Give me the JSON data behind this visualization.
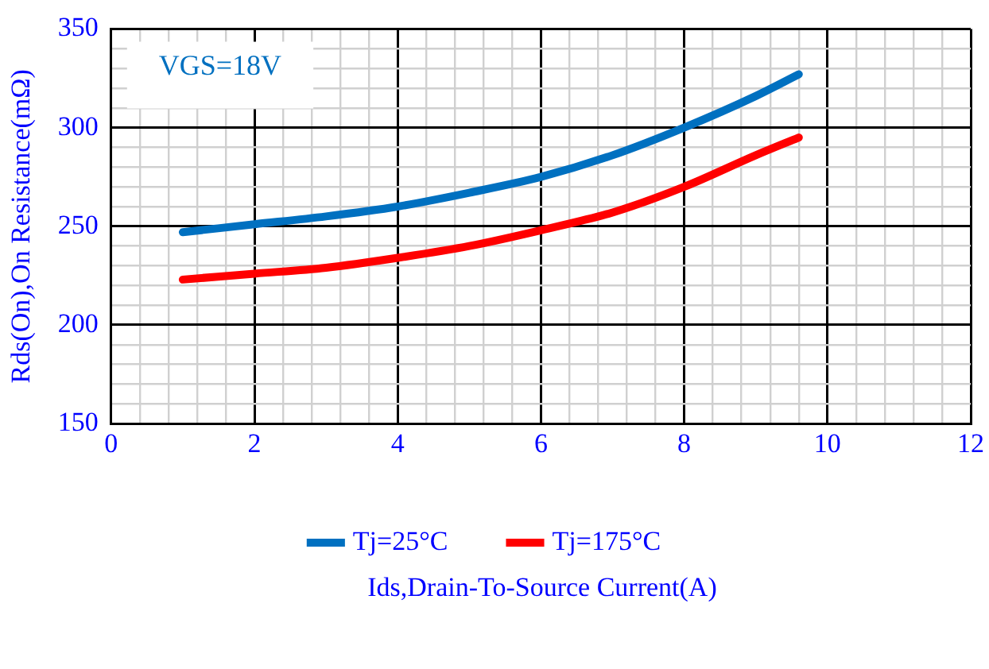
{
  "chart_data": {
    "type": "line",
    "xlabel": "Ids,Drain-To-Source Current(A)",
    "ylabel": "Rds(On),On Resistance(mΩ)",
    "annotations": [
      "VGS=18V"
    ],
    "series": [
      {
        "name": "Tj=25°C",
        "color": "#0070c0",
        "x": [
          1,
          2,
          3,
          4,
          5,
          6,
          7,
          8,
          9,
          9.6
        ],
        "values": [
          247,
          251,
          255,
          260,
          267,
          275,
          286,
          300,
          316,
          327
        ]
      },
      {
        "name": "Tj=175°C",
        "color": "#ff0000",
        "x": [
          1,
          2,
          3,
          4,
          5,
          6,
          7,
          8,
          9,
          9.6
        ],
        "values": [
          223,
          226,
          229,
          234,
          240,
          248,
          257,
          270,
          286,
          295
        ]
      }
    ],
    "xlim": [
      0,
      12
    ],
    "ylim": [
      150,
      350
    ],
    "xticks": [
      0,
      {
        "value": 0.4,
        "label": null
      },
      {
        "value": 0.8,
        "label": null
      },
      {
        "value": 1.2,
        "label": null
      },
      {
        "value": 1.6,
        "label": null
      },
      2,
      {
        "value": 2.4,
        "label": null
      },
      {
        "value": 2.8,
        "label": null
      },
      {
        "value": 3.2,
        "label": null
      },
      {
        "value": 3.6,
        "label": null
      },
      4,
      {
        "value": 4.4,
        "label": null
      },
      {
        "value": 4.8,
        "label": null
      },
      {
        "value": 5.2,
        "label": null
      },
      {
        "value": 5.6,
        "label": null
      },
      6,
      {
        "value": 6.4,
        "label": null
      },
      {
        "value": 6.8,
        "label": null
      },
      {
        "value": 7.2,
        "label": null
      },
      {
        "value": 7.6,
        "label": null
      },
      8,
      {
        "value": 8.4,
        "label": null
      },
      {
        "value": 8.8,
        "label": null
      },
      {
        "value": 9.2,
        "label": null
      },
      {
        "value": 9.6,
        "label": null
      },
      10,
      {
        "value": 10.4,
        "label": null
      },
      {
        "value": 10.8,
        "label": null
      },
      {
        "value": 11.2,
        "label": null
      },
      {
        "value": 11.6,
        "label": null
      },
      12
    ],
    "yticks": [
      150,
      {
        "value": 160,
        "label": null
      },
      {
        "value": 170,
        "label": null
      },
      {
        "value": 180,
        "label": null
      },
      {
        "value": 190,
        "label": null
      },
      200,
      {
        "value": 210,
        "label": null
      },
      {
        "value": 220,
        "label": null
      },
      {
        "value": 230,
        "label": null
      },
      {
        "value": 240,
        "label": null
      },
      250,
      {
        "value": 260,
        "label": null
      },
      {
        "value": 270,
        "label": null
      },
      {
        "value": 280,
        "label": null
      },
      {
        "value": 290,
        "label": null
      },
      300,
      {
        "value": 310,
        "label": null
      },
      {
        "value": 320,
        "label": null
      },
      {
        "value": 330,
        "label": null
      },
      {
        "value": 340,
        "label": null
      },
      350
    ],
    "grid": true,
    "legend": "bottom",
    "marker": "none",
    "line_style": "solid"
  }
}
